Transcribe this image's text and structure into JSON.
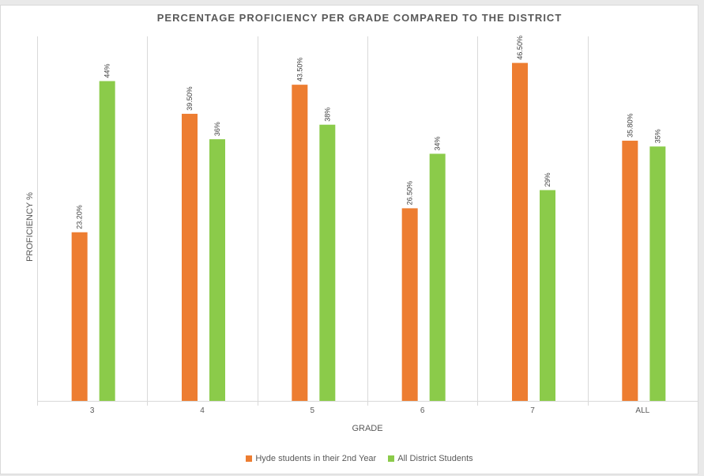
{
  "chart_data": {
    "type": "bar",
    "title": "PERCENTAGE PROFICIENCY PER GRADE COMPARED TO THE DISTRICT",
    "xlabel": "GRADE",
    "ylabel": "PROFICIENCY %",
    "categories": [
      "3",
      "4",
      "5",
      "6",
      "7",
      "ALL"
    ],
    "series": [
      {
        "name": "Hyde students  in their 2nd Year",
        "color": "#ed7d31",
        "values": [
          23.2,
          39.5,
          43.5,
          26.5,
          46.5,
          35.8
        ],
        "labels": [
          "23.20%",
          "39.50%",
          "43.50%",
          "26.50%",
          "46.50%",
          "35.80%"
        ]
      },
      {
        "name": "All District Students",
        "color": "#8bcb4a",
        "values": [
          44,
          36,
          38,
          34,
          29,
          35
        ],
        "labels": [
          "44%",
          "36%",
          "38%",
          "34%",
          "29%",
          "35%"
        ]
      }
    ],
    "ylim": [
      0,
      49.5
    ],
    "grid": "vertical category separators",
    "legend_position": "bottom"
  }
}
